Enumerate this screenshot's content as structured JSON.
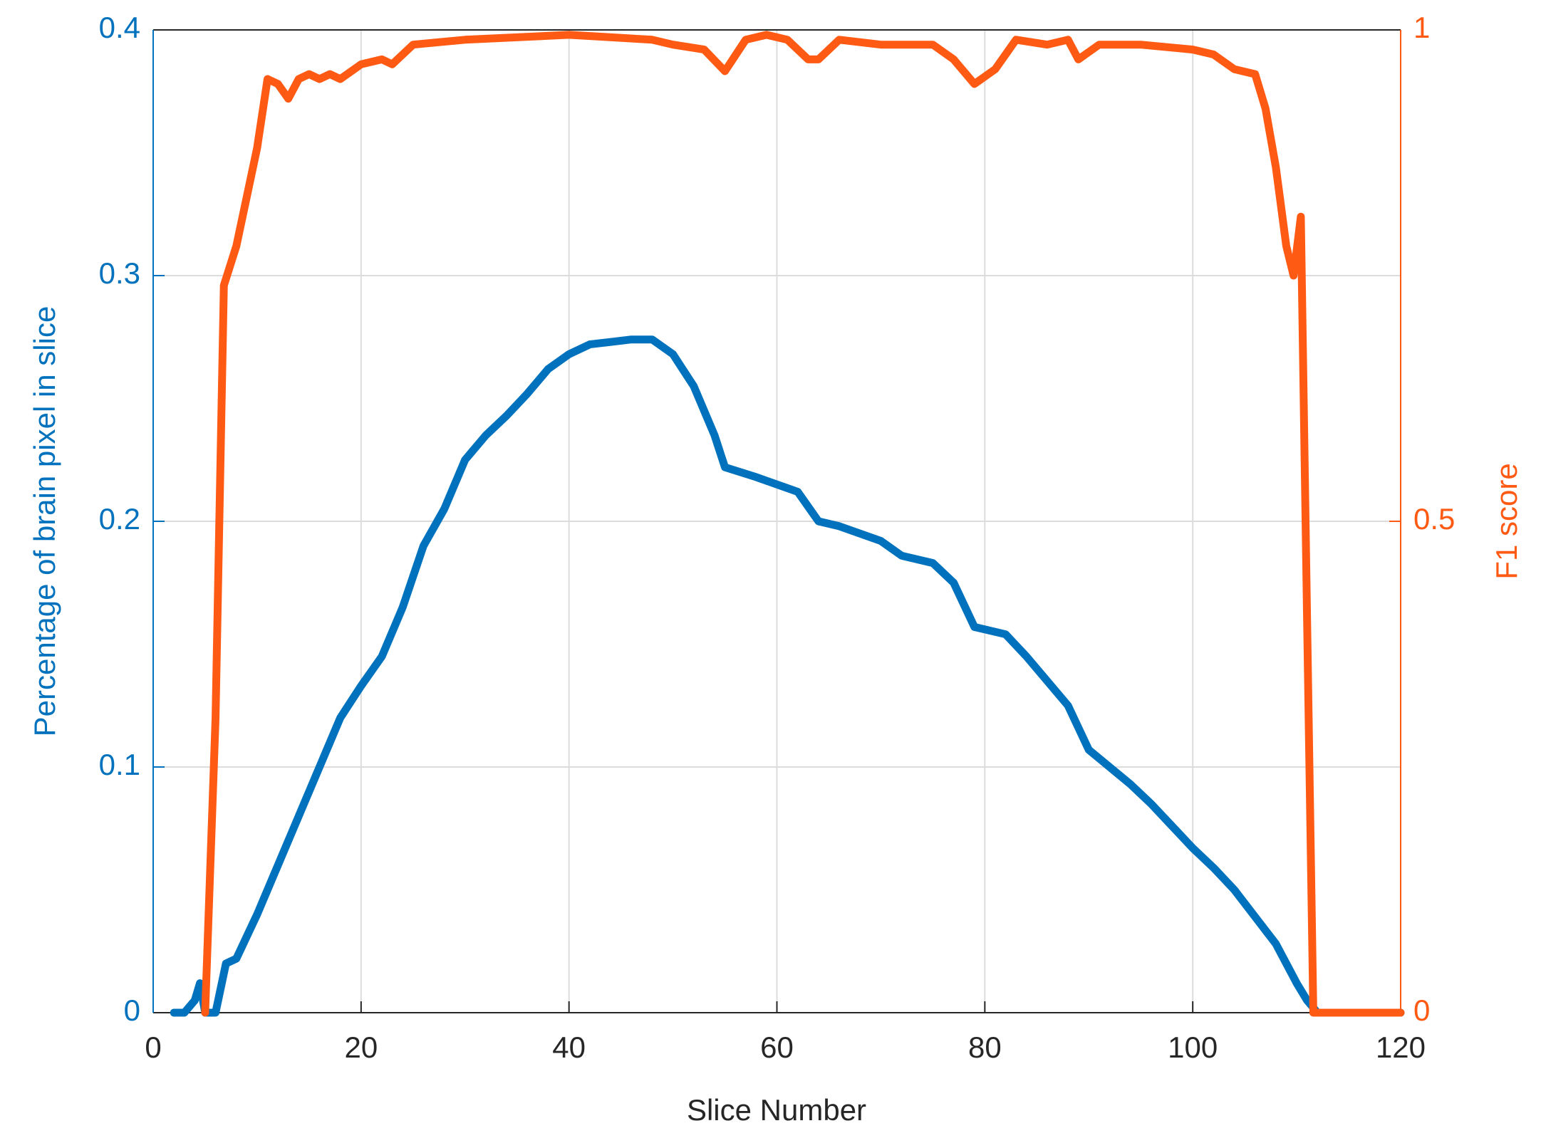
{
  "chart_data": {
    "type": "line",
    "xlabel": "Slice Number",
    "ylabel": "Percentage of brain pixel in slice",
    "y2label": "F1 score",
    "xlim": [
      0,
      120
    ],
    "xticks": [
      0,
      20,
      40,
      60,
      80,
      100,
      120
    ],
    "ylim": [
      0,
      0.4
    ],
    "yticks": [
      0,
      0.1,
      0.2,
      0.3,
      0.4
    ],
    "y2lim": [
      0,
      1
    ],
    "y2ticks": [
      0,
      0.5,
      1
    ],
    "grid": true,
    "y_color": "#0072bd",
    "y2_color": "#ff5a14",
    "series": [
      {
        "name": "Percentage of brain pixel in slice",
        "color": "#0072bd",
        "axis": "y",
        "x": [
          2,
          3,
          4,
          4.5,
          5,
          6,
          7,
          8,
          10,
          12,
          14,
          16,
          18,
          20,
          22,
          24,
          26,
          28,
          30,
          32,
          34,
          36,
          38,
          40,
          42,
          44,
          46,
          48,
          50,
          52,
          54,
          55,
          58,
          62,
          64,
          66,
          70,
          72,
          75,
          77,
          79,
          82,
          84,
          86,
          88,
          90,
          92,
          94,
          96,
          98,
          100,
          102,
          104,
          106,
          108,
          109,
          110,
          111,
          112,
          120
        ],
        "values": [
          0,
          0,
          0.005,
          0.012,
          0,
          0,
          0.02,
          0.022,
          0.04,
          0.06,
          0.08,
          0.1,
          0.12,
          0.133,
          0.145,
          0.165,
          0.19,
          0.205,
          0.225,
          0.235,
          0.243,
          0.252,
          0.262,
          0.268,
          0.272,
          0.273,
          0.274,
          0.274,
          0.268,
          0.255,
          0.235,
          0.222,
          0.218,
          0.212,
          0.2,
          0.198,
          0.192,
          0.186,
          0.183,
          0.175,
          0.157,
          0.154,
          0.145,
          0.135,
          0.125,
          0.107,
          0.1,
          0.093,
          0.085,
          0.076,
          0.067,
          0.059,
          0.05,
          0.039,
          0.028,
          0.02,
          0.012,
          0.005,
          0,
          0
        ]
      },
      {
        "name": "F1 score",
        "color": "#ff5a14",
        "axis": "y2",
        "x": [
          5,
          6,
          6.8,
          8,
          10,
          11,
          12,
          13,
          14,
          15,
          16,
          17,
          18,
          20,
          22,
          23,
          25,
          30,
          40,
          48,
          50,
          53,
          55,
          57,
          59,
          61,
          63,
          64,
          66,
          70,
          75,
          77,
          79,
          81,
          83,
          86,
          88,
          89,
          91,
          95,
          100,
          102,
          104,
          106,
          107,
          108,
          109,
          109.7,
          110.4,
          111,
          111.6,
          120
        ],
        "values": [
          0,
          0.3,
          0.74,
          0.78,
          0.88,
          0.95,
          0.945,
          0.93,
          0.95,
          0.955,
          0.95,
          0.955,
          0.95,
          0.965,
          0.97,
          0.965,
          0.985,
          0.99,
          0.995,
          0.99,
          0.985,
          0.98,
          0.958,
          0.99,
          0.995,
          0.99,
          0.97,
          0.97,
          0.99,
          0.985,
          0.985,
          0.97,
          0.945,
          0.96,
          0.99,
          0.985,
          0.99,
          0.97,
          0.985,
          0.985,
          0.98,
          0.975,
          0.96,
          0.955,
          0.92,
          0.86,
          0.78,
          0.75,
          0.81,
          0.4,
          0,
          0
        ]
      }
    ]
  }
}
